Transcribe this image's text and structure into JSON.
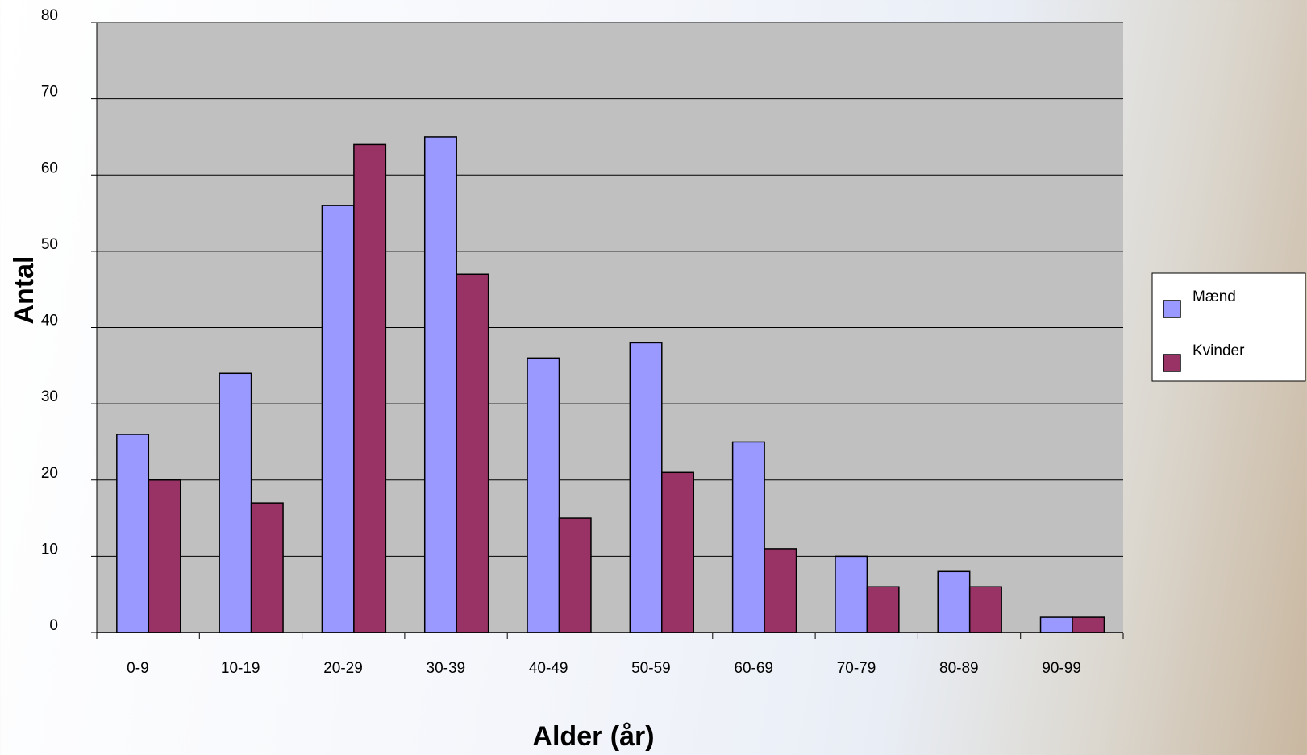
{
  "chart_data": {
    "type": "bar",
    "x_label": "Alder (år)",
    "y_label": "Antal",
    "categories": [
      "0-9",
      "10-19",
      "20-29",
      "30-39",
      "40-49",
      "50-59",
      "60-69",
      "70-79",
      "80-89",
      "90-99"
    ],
    "series": [
      {
        "name": "Mænd",
        "color": "#9999ff",
        "values": [
          26,
          34,
          56,
          65,
          36,
          38,
          25,
          10,
          8,
          2
        ]
      },
      {
        "name": "Kvinder",
        "color": "#993366",
        "values": [
          20,
          17,
          64,
          47,
          15,
          21,
          11,
          6,
          6,
          2
        ]
      }
    ],
    "ylim": [
      0,
      80
    ],
    "yticks": [
      0,
      10,
      20,
      30,
      40,
      50,
      60,
      70,
      80
    ],
    "grid": true,
    "legend": "right"
  }
}
